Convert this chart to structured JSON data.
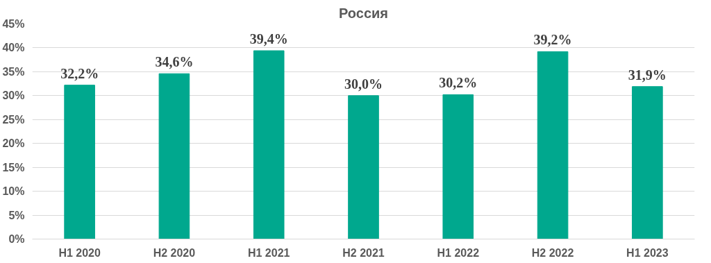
{
  "chart_data": {
    "type": "bar",
    "title": "Россия",
    "categories": [
      "H1 2020",
      "H2 2020",
      "H1 2021",
      "H2 2021",
      "H1 2022",
      "H2 2022",
      "H1 2023"
    ],
    "values": [
      32.2,
      34.6,
      39.4,
      30.0,
      30.2,
      39.2,
      31.9
    ],
    "value_labels": [
      "32,2%",
      "34,6%",
      "39,4%",
      "30,0%",
      "30,2%",
      "39,2%",
      "31,9%"
    ],
    "color": "#00a88e",
    "ylim": [
      0,
      45
    ],
    "yticks": [
      {
        "value": 0,
        "label": "0%"
      },
      {
        "value": 5,
        "label": "5%"
      },
      {
        "value": 10,
        "label": "10%"
      },
      {
        "value": 15,
        "label": "15%"
      },
      {
        "value": 20,
        "label": "20%"
      },
      {
        "value": 25,
        "label": "25%"
      },
      {
        "value": 30,
        "label": "30%"
      },
      {
        "value": 35,
        "label": "35%"
      },
      {
        "value": 40,
        "label": "40%"
      },
      {
        "value": 45,
        "label": "45%"
      }
    ],
    "grid": "y"
  }
}
